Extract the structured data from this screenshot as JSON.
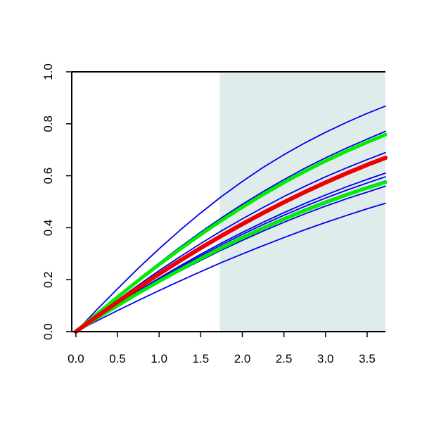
{
  "chart_data": {
    "type": "line",
    "title": "",
    "xlabel": "",
    "ylabel": "",
    "xlim": [
      -0.05,
      3.72
    ],
    "ylim": [
      0,
      1
    ],
    "grid": false,
    "legend": "none",
    "shaded_region": {
      "x_from": 1.73,
      "x_to": 3.72,
      "color": "#e0ecec"
    },
    "x_ticks": [
      {
        "value": 0.0,
        "label": "0.0"
      },
      {
        "value": 0.5,
        "label": "0.5"
      },
      {
        "value": 1.0,
        "label": "1.0"
      },
      {
        "value": 1.5,
        "label": "1.5"
      },
      {
        "value": 2.0,
        "label": "2.0"
      },
      {
        "value": 2.5,
        "label": "2.5"
      },
      {
        "value": 3.0,
        "label": "3.0"
      },
      {
        "value": 3.5,
        "label": "3.5"
      }
    ],
    "y_ticks": [
      {
        "value": 0.0,
        "label": "0.0"
      },
      {
        "value": 0.2,
        "label": "0.2"
      },
      {
        "value": 0.4,
        "label": "0.4"
      },
      {
        "value": 0.6,
        "label": "0.6"
      },
      {
        "value": 0.8,
        "label": "0.8"
      },
      {
        "value": 1.0,
        "label": "1.0"
      }
    ],
    "series": [
      {
        "color": "#0000ee",
        "width": 1.8,
        "x": [
          0,
          0.25,
          0.5,
          0.75,
          1.0,
          1.25,
          1.5,
          1.75,
          2.0,
          2.25,
          2.5,
          2.75,
          3.0,
          3.25,
          3.5,
          3.72
        ],
        "y": [
          0,
          0.084,
          0.165,
          0.244,
          0.319,
          0.39,
          0.457,
          0.52,
          0.578,
          0.632,
          0.681,
          0.726,
          0.767,
          0.805,
          0.84,
          0.868
        ]
      },
      {
        "color": "#0000ee",
        "width": 1.8,
        "x": [
          0,
          0.25,
          0.5,
          0.75,
          1.0,
          1.25,
          1.5,
          1.75,
          2.0,
          2.25,
          2.5,
          2.75,
          3.0,
          3.25,
          3.5,
          3.72
        ],
        "y": [
          0,
          0.069,
          0.136,
          0.202,
          0.264,
          0.325,
          0.383,
          0.438,
          0.49,
          0.539,
          0.585,
          0.629,
          0.669,
          0.706,
          0.741,
          0.771
        ]
      },
      {
        "color": "#0000ee",
        "width": 1.8,
        "x": [
          0,
          0.25,
          0.5,
          0.75,
          1.0,
          1.25,
          1.5,
          1.75,
          2.0,
          2.25,
          2.5,
          2.75,
          3.0,
          3.25,
          3.5,
          3.72
        ],
        "y": [
          0,
          0.062,
          0.121,
          0.179,
          0.235,
          0.288,
          0.339,
          0.388,
          0.434,
          0.478,
          0.52,
          0.559,
          0.596,
          0.63,
          0.662,
          0.689
        ]
      },
      {
        "color": "#0000ee",
        "width": 1.8,
        "x": [
          0,
          0.25,
          0.5,
          0.75,
          1.0,
          1.25,
          1.5,
          1.75,
          2.0,
          2.25,
          2.5,
          2.75,
          3.0,
          3.25,
          3.5,
          3.72
        ],
        "y": [
          0,
          0.054,
          0.106,
          0.157,
          0.206,
          0.253,
          0.298,
          0.341,
          0.382,
          0.421,
          0.458,
          0.493,
          0.526,
          0.557,
          0.586,
          0.61
        ]
      },
      {
        "color": "#0000ee",
        "width": 1.8,
        "x": [
          0,
          0.25,
          0.5,
          0.75,
          1.0,
          1.25,
          1.5,
          1.75,
          2.0,
          2.25,
          2.5,
          2.75,
          3.0,
          3.25,
          3.5,
          3.72
        ],
        "y": [
          0,
          0.053,
          0.104,
          0.154,
          0.202,
          0.248,
          0.292,
          0.334,
          0.374,
          0.412,
          0.448,
          0.482,
          0.514,
          0.544,
          0.572,
          0.596
        ]
      },
      {
        "color": "#0000ee",
        "width": 1.8,
        "x": [
          0,
          0.25,
          0.5,
          0.75,
          1.0,
          1.25,
          1.5,
          1.75,
          2.0,
          2.25,
          2.5,
          2.75,
          3.0,
          3.25,
          3.5,
          3.72
        ],
        "y": [
          0,
          0.052,
          0.102,
          0.151,
          0.198,
          0.243,
          0.286,
          0.327,
          0.366,
          0.403,
          0.438,
          0.471,
          0.502,
          0.531,
          0.558,
          0.58
        ]
      },
      {
        "color": "#0000ee",
        "width": 1.8,
        "x": [
          0,
          0.25,
          0.5,
          0.75,
          1.0,
          1.25,
          1.5,
          1.75,
          2.0,
          2.25,
          2.5,
          2.75,
          3.0,
          3.25,
          3.5,
          3.72
        ],
        "y": [
          0,
          0.05,
          0.098,
          0.145,
          0.19,
          0.233,
          0.274,
          0.314,
          0.351,
          0.387,
          0.421,
          0.453,
          0.483,
          0.511,
          0.537,
          0.56
        ]
      },
      {
        "color": "#0000ee",
        "width": 1.8,
        "x": [
          0,
          0.25,
          0.5,
          0.75,
          1.0,
          1.25,
          1.5,
          1.75,
          2.0,
          2.25,
          2.5,
          2.75,
          3.0,
          3.25,
          3.5,
          3.72
        ],
        "y": [
          0,
          0.041,
          0.081,
          0.12,
          0.158,
          0.195,
          0.231,
          0.266,
          0.299,
          0.331,
          0.362,
          0.392,
          0.42,
          0.447,
          0.473,
          0.494
        ]
      },
      {
        "color": "#00ee00",
        "width": 5,
        "x": [
          0,
          0.25,
          0.5,
          0.75,
          1.0,
          1.25,
          1.5,
          1.75,
          2.0,
          2.25,
          2.5,
          2.75,
          3.0,
          3.25,
          3.5,
          3.72
        ],
        "y": [
          0,
          0.067,
          0.133,
          0.197,
          0.258,
          0.317,
          0.374,
          0.428,
          0.479,
          0.528,
          0.574,
          0.617,
          0.657,
          0.694,
          0.729,
          0.758
        ]
      },
      {
        "color": "#00ee00",
        "width": 5,
        "x": [
          0,
          0.25,
          0.5,
          0.75,
          1.0,
          1.25,
          1.5,
          1.75,
          2.0,
          2.25,
          2.5,
          2.75,
          3.0,
          3.25,
          3.5,
          3.72
        ],
        "y": [
          0,
          0.051,
          0.1,
          0.148,
          0.194,
          0.238,
          0.281,
          0.322,
          0.361,
          0.398,
          0.433,
          0.466,
          0.497,
          0.526,
          0.553,
          0.575
        ]
      },
      {
        "color": "#ee0000",
        "width": 6,
        "x": [
          0,
          0.25,
          0.5,
          0.75,
          1.0,
          1.25,
          1.5,
          1.75,
          2.0,
          2.25,
          2.5,
          2.75,
          3.0,
          3.25,
          3.5,
          3.72
        ],
        "y": [
          0,
          0.058,
          0.114,
          0.169,
          0.222,
          0.273,
          0.322,
          0.369,
          0.414,
          0.457,
          0.498,
          0.537,
          0.574,
          0.609,
          0.642,
          0.669
        ]
      }
    ]
  }
}
